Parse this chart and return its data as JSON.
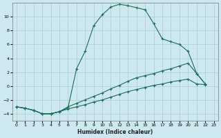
{
  "xlabel": "Humidex (Indice chaleur)",
  "background_color": "#cde8ee",
  "grid_color": "#aacdd6",
  "line_color": "#1a6b5a",
  "xlim": [
    -0.5,
    23.5
  ],
  "ylim": [
    -5.0,
    12.0
  ],
  "yticks": [
    -4,
    -2,
    0,
    2,
    4,
    6,
    8,
    10
  ],
  "xticks": [
    0,
    1,
    2,
    3,
    4,
    5,
    6,
    7,
    8,
    9,
    10,
    11,
    12,
    13,
    14,
    15,
    16,
    17,
    18,
    19,
    20,
    21,
    22,
    23
  ],
  "main_curve": {
    "x": [
      0,
      1,
      2,
      3,
      4,
      5,
      6,
      7,
      8,
      9,
      10,
      11,
      12,
      13,
      14,
      15,
      16,
      17,
      18,
      19,
      20,
      21,
      22
    ],
    "y": [
      -3.0,
      -3.2,
      -3.5,
      -4.0,
      -4.0,
      -3.7,
      -3.2,
      2.5,
      5.0,
      8.7,
      10.3,
      11.4,
      11.8,
      11.6,
      11.3,
      11.0,
      9.0,
      6.8,
      6.4,
      6.0,
      5.0,
      1.8,
      0.3
    ]
  },
  "line2": {
    "x": [
      0,
      1,
      2,
      3,
      4,
      5,
      6,
      7,
      8,
      9,
      10,
      11,
      12,
      13,
      14,
      15,
      16,
      17,
      18,
      19,
      20,
      21,
      22
    ],
    "y": [
      -3.0,
      -3.2,
      -3.5,
      -4.0,
      -4.0,
      -3.7,
      -3.0,
      -2.5,
      -2.0,
      -1.5,
      -1.0,
      -0.4,
      0.1,
      0.7,
      1.2,
      1.5,
      1.8,
      2.2,
      2.5,
      2.9,
      3.3,
      1.8,
      0.3
    ]
  },
  "line1": {
    "x": [
      0,
      1,
      2,
      3,
      4,
      5,
      6,
      7,
      8,
      9,
      10,
      11,
      12,
      13,
      14,
      15,
      16,
      17,
      18,
      19,
      20,
      21,
      22
    ],
    "y": [
      -3.0,
      -3.2,
      -3.5,
      -4.0,
      -4.0,
      -3.7,
      -3.3,
      -3.0,
      -2.7,
      -2.3,
      -2.0,
      -1.6,
      -1.2,
      -0.8,
      -0.5,
      -0.2,
      0.1,
      0.3,
      0.6,
      0.8,
      1.0,
      0.3,
      0.2
    ]
  }
}
